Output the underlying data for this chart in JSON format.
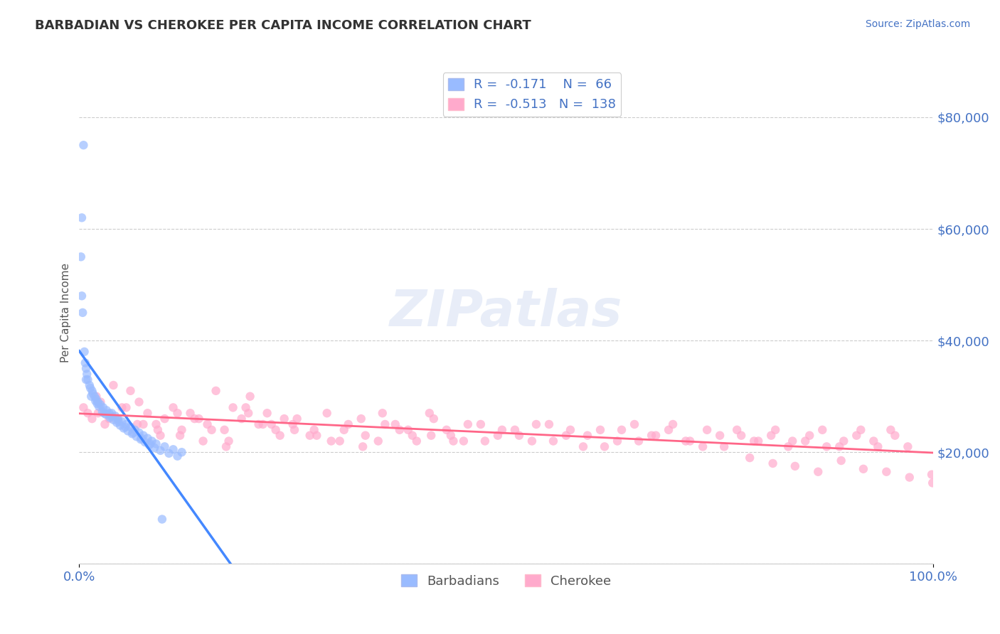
{
  "title": "BARBADIAN VS CHEROKEE PER CAPITA INCOME CORRELATION CHART",
  "source": "Source: ZipAtlas.com",
  "ylabel": "Per Capita Income",
  "xlim": [
    0,
    1.0
  ],
  "ylim": [
    0,
    90000
  ],
  "yticks": [
    0,
    20000,
    40000,
    60000,
    80000
  ],
  "background_color": "#ffffff",
  "grid_color": "#cccccc",
  "title_color": "#333333",
  "axis_label_color": "#555555",
  "tick_label_color": "#4472c4",
  "barbadian_color": "#99bbff",
  "cherokee_color": "#ffaacc",
  "barbadian_line_color": "#4488ff",
  "cherokee_line_color": "#ff6688",
  "dashed_line_color": "#bbbbbb",
  "barbadian_scatter_x": [
    0.005,
    0.003,
    0.004,
    0.006,
    0.008,
    0.01,
    0.012,
    0.015,
    0.018,
    0.02,
    0.022,
    0.025,
    0.028,
    0.032,
    0.035,
    0.038,
    0.042,
    0.045,
    0.05,
    0.055,
    0.06,
    0.065,
    0.07,
    0.075,
    0.08,
    0.085,
    0.09,
    0.1,
    0.11,
    0.12,
    0.002,
    0.007,
    0.009,
    0.013,
    0.016,
    0.019,
    0.023,
    0.027,
    0.031,
    0.036,
    0.04,
    0.044,
    0.048,
    0.052,
    0.057,
    0.062,
    0.067,
    0.072,
    0.077,
    0.082,
    0.088,
    0.095,
    0.105,
    0.115,
    0.003,
    0.008,
    0.014,
    0.021,
    0.029,
    0.037,
    0.046,
    0.054,
    0.063,
    0.073,
    0.083,
    0.097
  ],
  "barbadian_scatter_y": [
    75000,
    62000,
    45000,
    38000,
    35000,
    33000,
    32000,
    31000,
    30000,
    29500,
    29000,
    28500,
    28000,
    27500,
    27000,
    27000,
    26500,
    26000,
    25500,
    25000,
    24500,
    24000,
    23500,
    23000,
    22500,
    22000,
    21500,
    21000,
    20500,
    20000,
    55000,
    36000,
    34000,
    31500,
    30500,
    29200,
    28200,
    27200,
    26800,
    26200,
    25800,
    25300,
    24800,
    24300,
    23800,
    23300,
    22800,
    22300,
    21800,
    21300,
    20800,
    20300,
    19800,
    19300,
    48000,
    33000,
    30000,
    28700,
    27000,
    26500,
    25500,
    24500,
    23500,
    22500,
    21500,
    8000
  ],
  "cherokee_scatter_x": [
    0.005,
    0.01,
    0.015,
    0.02,
    0.025,
    0.03,
    0.04,
    0.05,
    0.06,
    0.07,
    0.08,
    0.09,
    0.1,
    0.11,
    0.12,
    0.13,
    0.14,
    0.15,
    0.16,
    0.17,
    0.18,
    0.19,
    0.2,
    0.21,
    0.22,
    0.23,
    0.24,
    0.25,
    0.27,
    0.29,
    0.31,
    0.33,
    0.35,
    0.37,
    0.39,
    0.41,
    0.43,
    0.45,
    0.47,
    0.49,
    0.51,
    0.53,
    0.55,
    0.57,
    0.59,
    0.61,
    0.63,
    0.65,
    0.67,
    0.69,
    0.71,
    0.73,
    0.75,
    0.77,
    0.79,
    0.81,
    0.83,
    0.85,
    0.87,
    0.89,
    0.91,
    0.93,
    0.95,
    0.97,
    0.035,
    0.055,
    0.075,
    0.095,
    0.115,
    0.135,
    0.155,
    0.175,
    0.195,
    0.215,
    0.235,
    0.255,
    0.275,
    0.295,
    0.315,
    0.335,
    0.355,
    0.375,
    0.395,
    0.415,
    0.435,
    0.455,
    0.475,
    0.495,
    0.515,
    0.535,
    0.555,
    0.575,
    0.595,
    0.615,
    0.635,
    0.655,
    0.675,
    0.695,
    0.715,
    0.735,
    0.755,
    0.775,
    0.795,
    0.815,
    0.835,
    0.855,
    0.875,
    0.895,
    0.915,
    0.935,
    0.955,
    0.022,
    0.045,
    0.068,
    0.092,
    0.118,
    0.145,
    0.172,
    0.198,
    0.225,
    0.252,
    0.278,
    0.305,
    0.332,
    0.358,
    0.385,
    0.412,
    0.438,
    0.998,
    0.785,
    0.812,
    0.838,
    0.865,
    0.892,
    0.918,
    0.945,
    0.972,
    0.999
  ],
  "cherokee_scatter_y": [
    28000,
    27000,
    26000,
    30000,
    29000,
    25000,
    32000,
    28000,
    31000,
    29000,
    27000,
    25000,
    26000,
    28000,
    24000,
    27000,
    26000,
    25000,
    31000,
    24000,
    28000,
    26000,
    30000,
    25000,
    27000,
    24000,
    26000,
    25000,
    23000,
    27000,
    24000,
    26000,
    22000,
    25000,
    23000,
    27000,
    24000,
    22000,
    25000,
    23000,
    24000,
    22000,
    25000,
    23000,
    21000,
    24000,
    22000,
    25000,
    23000,
    24000,
    22000,
    21000,
    23000,
    24000,
    22000,
    23000,
    21000,
    22000,
    24000,
    21000,
    23000,
    22000,
    24000,
    21000,
    26000,
    28000,
    25000,
    23000,
    27000,
    26000,
    24000,
    22000,
    28000,
    25000,
    23000,
    26000,
    24000,
    22000,
    25000,
    23000,
    27000,
    24000,
    22000,
    26000,
    23000,
    25000,
    22000,
    24000,
    23000,
    25000,
    22000,
    24000,
    23000,
    21000,
    24000,
    22000,
    23000,
    25000,
    22000,
    24000,
    21000,
    23000,
    22000,
    24000,
    22000,
    23000,
    21000,
    22000,
    24000,
    21000,
    23000,
    27000,
    26000,
    25000,
    24000,
    23000,
    22000,
    21000,
    27000,
    25000,
    24000,
    23000,
    22000,
    21000,
    25000,
    24000,
    23000,
    22000,
    16000,
    19000,
    18000,
    17500,
    16500,
    18500,
    17000,
    16500,
    15500,
    14500
  ],
  "barb_R": -0.171,
  "barb_N": 66,
  "cher_R": -0.513,
  "cher_N": 138,
  "legend_color": "#4472c4",
  "marker_size": 80,
  "alpha": 0.7
}
